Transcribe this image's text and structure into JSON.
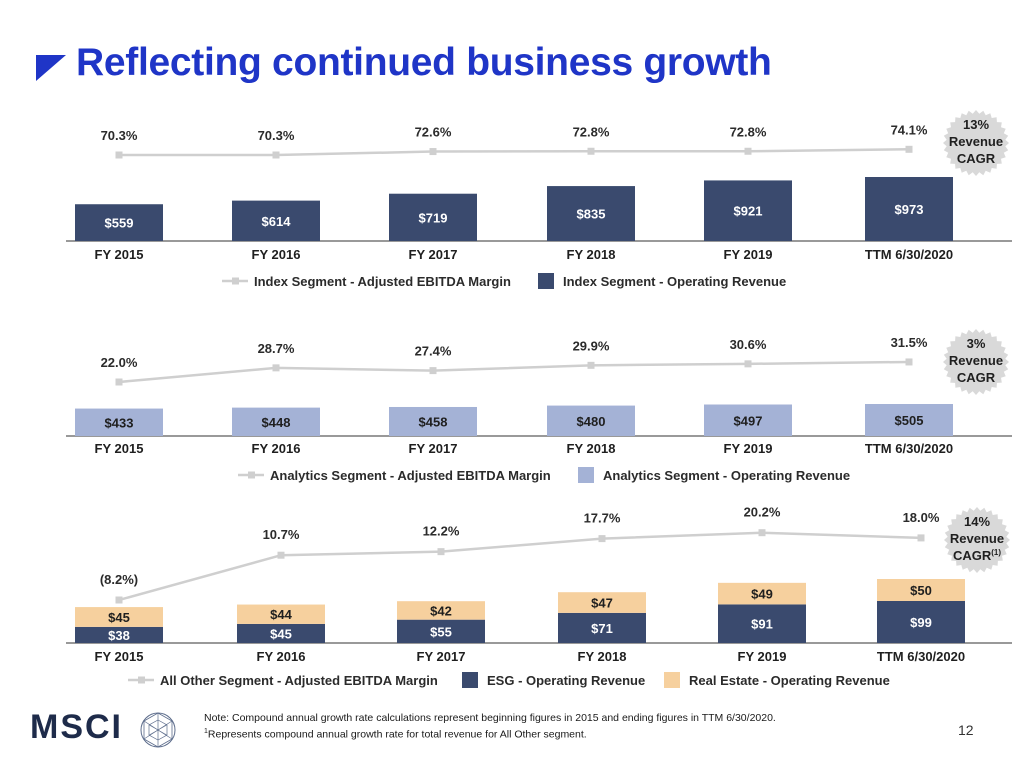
{
  "page": {
    "title": "Reflecting continued business growth",
    "page_number": "12",
    "footnote_line1": "Note: Compound annual growth rate calculations represent beginning figures in 2015 and ending figures in TTM 6/30/2020.",
    "footnote_line2_sup": "1",
    "footnote_line2": "Represents compound annual growth rate for total revenue for All Other segment.",
    "logo_text": "MSCI"
  },
  "colors": {
    "title_blue": "#1f35c7",
    "navy_bar": "#3a4a6e",
    "light_blue_bar": "#a4b2d6",
    "tan_bar": "#f6d09e",
    "line_gray": "#cfcfcf",
    "badge_fill": "#d9d9d9"
  },
  "chart_data": [
    {
      "type": "bar",
      "categories": [
        "FY 2015",
        "FY 2016",
        "FY 2017",
        "FY 2018",
        "FY 2019",
        "TTM 6/30/2020"
      ],
      "series": [
        {
          "name": "Index Segment - Operating Revenue",
          "kind": "bar",
          "values": [
            559,
            614,
            719,
            835,
            921,
            973
          ],
          "labels": [
            "$559",
            "$614",
            "$719",
            "$835",
            "$921",
            "$973"
          ]
        },
        {
          "name": "Index Segment - Adjusted EBITDA Margin",
          "kind": "line",
          "values": [
            70.3,
            70.3,
            72.6,
            72.8,
            72.8,
            74.1
          ],
          "labels": [
            "70.3%",
            "70.3%",
            "72.6%",
            "72.8%",
            "72.8%",
            "74.1%"
          ]
        }
      ],
      "legend": [
        "Index Segment - Adjusted EBITDA Margin",
        "Index Segment - Operating Revenue"
      ],
      "badge": {
        "line1": "13%",
        "line2": "Revenue",
        "line3": "CAGR",
        "sup": ""
      }
    },
    {
      "type": "bar",
      "categories": [
        "FY 2015",
        "FY 2016",
        "FY 2017",
        "FY 2018",
        "FY 2019",
        "TTM 6/30/2020"
      ],
      "series": [
        {
          "name": "Analytics Segment - Operating Revenue",
          "kind": "bar",
          "values": [
            433,
            448,
            458,
            480,
            497,
            505
          ],
          "labels": [
            "$433",
            "$448",
            "$458",
            "$480",
            "$497",
            "$505"
          ]
        },
        {
          "name": "Analytics Segment - Adjusted EBITDA Margin",
          "kind": "line",
          "values": [
            22.0,
            28.7,
            27.4,
            29.9,
            30.6,
            31.5
          ],
          "labels": [
            "22.0%",
            "28.7%",
            "27.4%",
            "29.9%",
            "30.6%",
            "31.5%"
          ]
        }
      ],
      "legend": [
        "Analytics Segment - Adjusted EBITDA Margin",
        "Analytics Segment - Operating Revenue"
      ],
      "badge": {
        "line1": "3%",
        "line2": "Revenue",
        "line3": "CAGR",
        "sup": ""
      }
    },
    {
      "type": "bar",
      "categories": [
        "FY 2015",
        "FY 2016",
        "FY 2017",
        "FY 2018",
        "FY 2019",
        "TTM 6/30/2020"
      ],
      "series": [
        {
          "name": "ESG - Operating Revenue",
          "kind": "bar",
          "values": [
            38,
            45,
            55,
            71,
            91,
            99
          ],
          "labels": [
            "$38",
            "$45",
            "$55",
            "$71",
            "$91",
            "$99"
          ]
        },
        {
          "name": "Real Estate - Operating Revenue",
          "kind": "bar-stacked",
          "values": [
            45,
            44,
            42,
            47,
            49,
            50
          ],
          "labels": [
            "$45",
            "$44",
            "$42",
            "$47",
            "$49",
            "$50"
          ]
        },
        {
          "name": "All Other Segment - Adjusted EBITDA Margin",
          "kind": "line",
          "values": [
            -8.2,
            10.7,
            12.2,
            17.7,
            20.2,
            18.0
          ],
          "labels": [
            "(8.2%)",
            "10.7%",
            "12.2%",
            "17.7%",
            "20.2%",
            "18.0%"
          ]
        }
      ],
      "legend": [
        "All Other Segment - Adjusted EBITDA Margin",
        "ESG - Operating Revenue",
        "Real Estate - Operating Revenue"
      ],
      "badge": {
        "line1": "14%",
        "line2": "Revenue",
        "line3": "CAGR",
        "sup": "(1)"
      }
    }
  ]
}
